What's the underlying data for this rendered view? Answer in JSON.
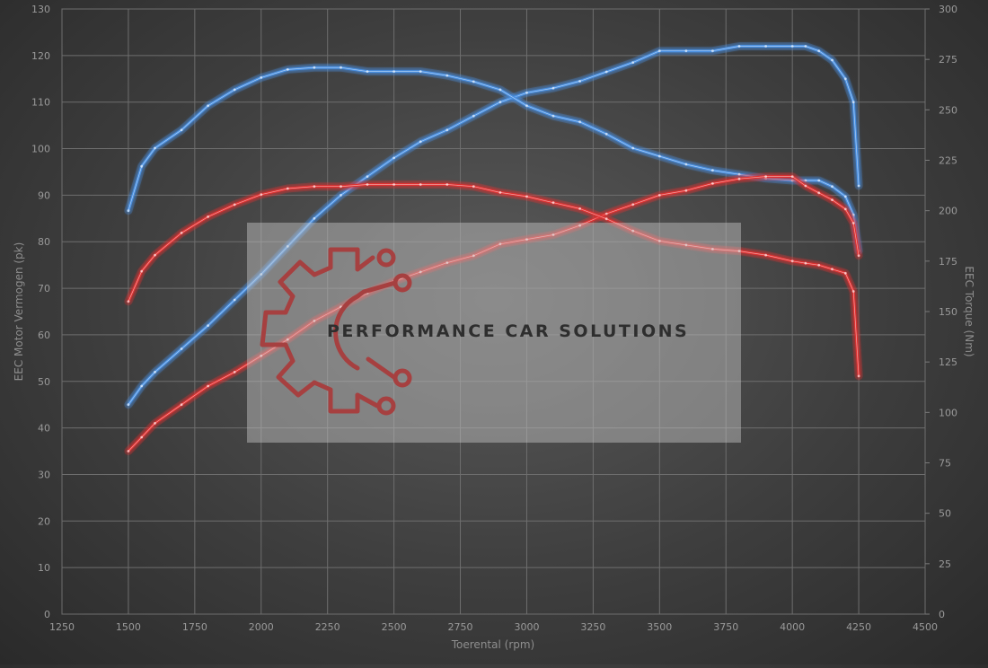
{
  "chart_data": {
    "type": "line",
    "xlabel": "Toerental (rpm)",
    "ylabel_left": "EEC Motor Vermogen (pk)",
    "ylabel_right": "EEC Torque (Nm)",
    "xlim": [
      1250,
      4500
    ],
    "x_ticks": [
      1250,
      1500,
      1750,
      2000,
      2250,
      2500,
      2750,
      3000,
      3250,
      3500,
      3750,
      4000,
      4250,
      4500
    ],
    "ylim_left": [
      0,
      130
    ],
    "y_ticks_left": [
      0,
      10,
      20,
      30,
      40,
      50,
      60,
      70,
      80,
      90,
      100,
      110,
      120,
      130
    ],
    "ylim_right": [
      0,
      300
    ],
    "y_ticks_right": [
      0,
      25,
      50,
      75,
      100,
      125,
      150,
      175,
      200,
      225,
      250,
      275,
      300
    ],
    "grid": true,
    "series": [
      {
        "axis": "left",
        "color": "#4a90e2",
        "x": [
          1500,
          1550,
          1600,
          1700,
          1800,
          1900,
          2000,
          2100,
          2200,
          2300,
          2400,
          2500,
          2600,
          2700,
          2800,
          2900,
          3000,
          3100,
          3200,
          3300,
          3400,
          3500,
          3600,
          3700,
          3800,
          3900,
          4000,
          4050,
          4100,
          4150,
          4200,
          4230,
          4250
        ],
        "values": [
          45,
          49,
          52,
          57,
          62,
          67.5,
          73,
          79,
          85,
          90,
          94,
          98,
          101.5,
          104,
          107,
          110,
          112,
          113,
          114.5,
          116.5,
          118.5,
          121,
          121,
          121,
          122,
          122,
          122,
          122,
          121,
          119,
          115,
          110,
          92
        ]
      },
      {
        "axis": "right",
        "color": "#4a90e2",
        "x": [
          1500,
          1550,
          1600,
          1700,
          1800,
          1900,
          2000,
          2100,
          2200,
          2300,
          2400,
          2500,
          2600,
          2700,
          2800,
          2900,
          3000,
          3100,
          3200,
          3300,
          3400,
          3500,
          3600,
          3700,
          3800,
          3900,
          4000,
          4050,
          4100,
          4150,
          4200,
          4230,
          4250
        ],
        "values": [
          200,
          222,
          231,
          240,
          252,
          260,
          266,
          270,
          271,
          271,
          269,
          269,
          269,
          267,
          264,
          260,
          252,
          247,
          244,
          238,
          231,
          227,
          223,
          220,
          218,
          216,
          215,
          215,
          215,
          212,
          207,
          198,
          180
        ]
      },
      {
        "axis": "left",
        "color": "#e03030",
        "x": [
          1500,
          1550,
          1600,
          1700,
          1800,
          1900,
          2000,
          2100,
          2200,
          2300,
          2400,
          2500,
          2600,
          2700,
          2800,
          2900,
          3000,
          3100,
          3200,
          3300,
          3400,
          3500,
          3600,
          3700,
          3800,
          3900,
          4000,
          4050,
          4100,
          4150,
          4200,
          4230,
          4250
        ],
        "values": [
          35,
          38,
          41,
          45,
          49,
          52,
          55.5,
          59,
          63,
          66,
          69,
          71.5,
          73.5,
          75.5,
          77,
          79.5,
          80.5,
          81.5,
          83.5,
          86,
          88,
          90,
          91,
          92.5,
          93.5,
          94,
          94,
          92,
          90.5,
          89,
          87,
          84,
          77
        ]
      },
      {
        "axis": "right",
        "color": "#e03030",
        "x": [
          1500,
          1550,
          1600,
          1700,
          1800,
          1900,
          2000,
          2100,
          2200,
          2300,
          2400,
          2500,
          2600,
          2700,
          2800,
          2900,
          3000,
          3100,
          3200,
          3300,
          3400,
          3500,
          3600,
          3700,
          3800,
          3900,
          4000,
          4050,
          4100,
          4150,
          4200,
          4230,
          4250
        ],
        "values": [
          155,
          170,
          178,
          189,
          197,
          203,
          208,
          211,
          212,
          212,
          213,
          213,
          213,
          213,
          212,
          209,
          207,
          204,
          201,
          196,
          190,
          185,
          183,
          181,
          180,
          178,
          175,
          174,
          173,
          171,
          169,
          160,
          118
        ]
      }
    ]
  },
  "watermark": {
    "text": "PERFORMANCE CAR SOLUTIONS",
    "color": "#a64040"
  }
}
